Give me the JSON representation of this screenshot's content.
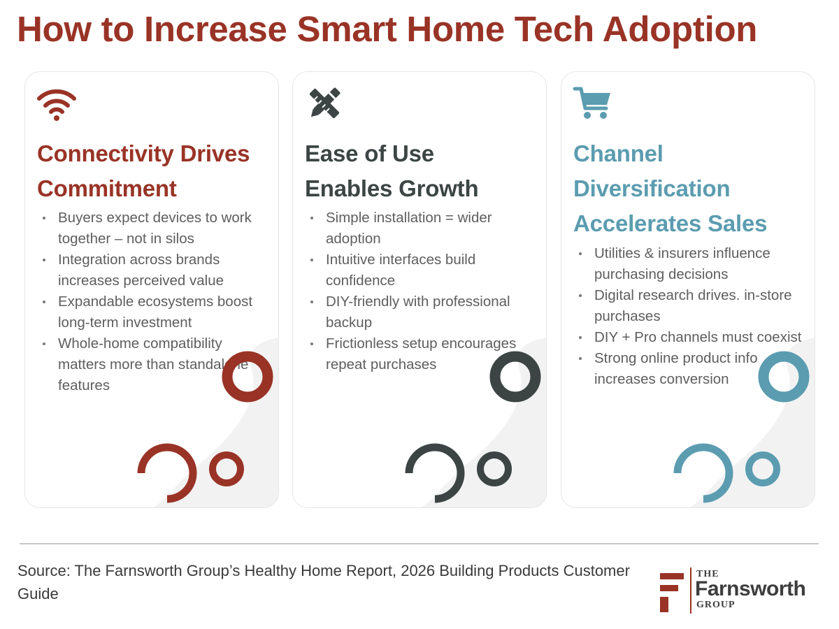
{
  "title": "How to Increase Smart Home Tech Adoption",
  "colors": {
    "red": "#993326",
    "dark": "#3c4544",
    "teal": "#5b9cb0",
    "shape_bg": "#f2f2f2"
  },
  "cards": [
    {
      "icon": "wifi-icon",
      "heading_lines": [
        "Connectivity Drives",
        "Commitment"
      ],
      "bullets": [
        "Buyers expect devices to work together – not in silos",
        "Integration across brands increases perceived value",
        "Expandable ecosystems boost long-term investment",
        "Whole-home compatibility matters more than standalone features"
      ]
    },
    {
      "icon": "tools-icon",
      "heading_lines": [
        "Ease of Use",
        "Enables Growth"
      ],
      "bullets": [
        "Simple installation = wider adoption",
        "Intuitive interfaces build confidence",
        "DIY-friendly with professional backup",
        "Frictionless setup encourages repeat purchases"
      ]
    },
    {
      "icon": "shopping-cart-icon",
      "heading_lines": [
        "Channel",
        "Diversification",
        "Accelerates Sales"
      ],
      "bullets": [
        "Utilities & insurers influence purchasing decisions",
        "Digital research drives. in-store purchases",
        "DIY + Pro channels must coexist",
        "Strong online product info increases conversion"
      ]
    }
  ],
  "source": "Source: The Farnsworth Group’s Healthy Home Report, 2026 Building Products Customer Guide",
  "logo": {
    "the": "THE",
    "name": "Farnsworth",
    "group": "GROUP"
  }
}
